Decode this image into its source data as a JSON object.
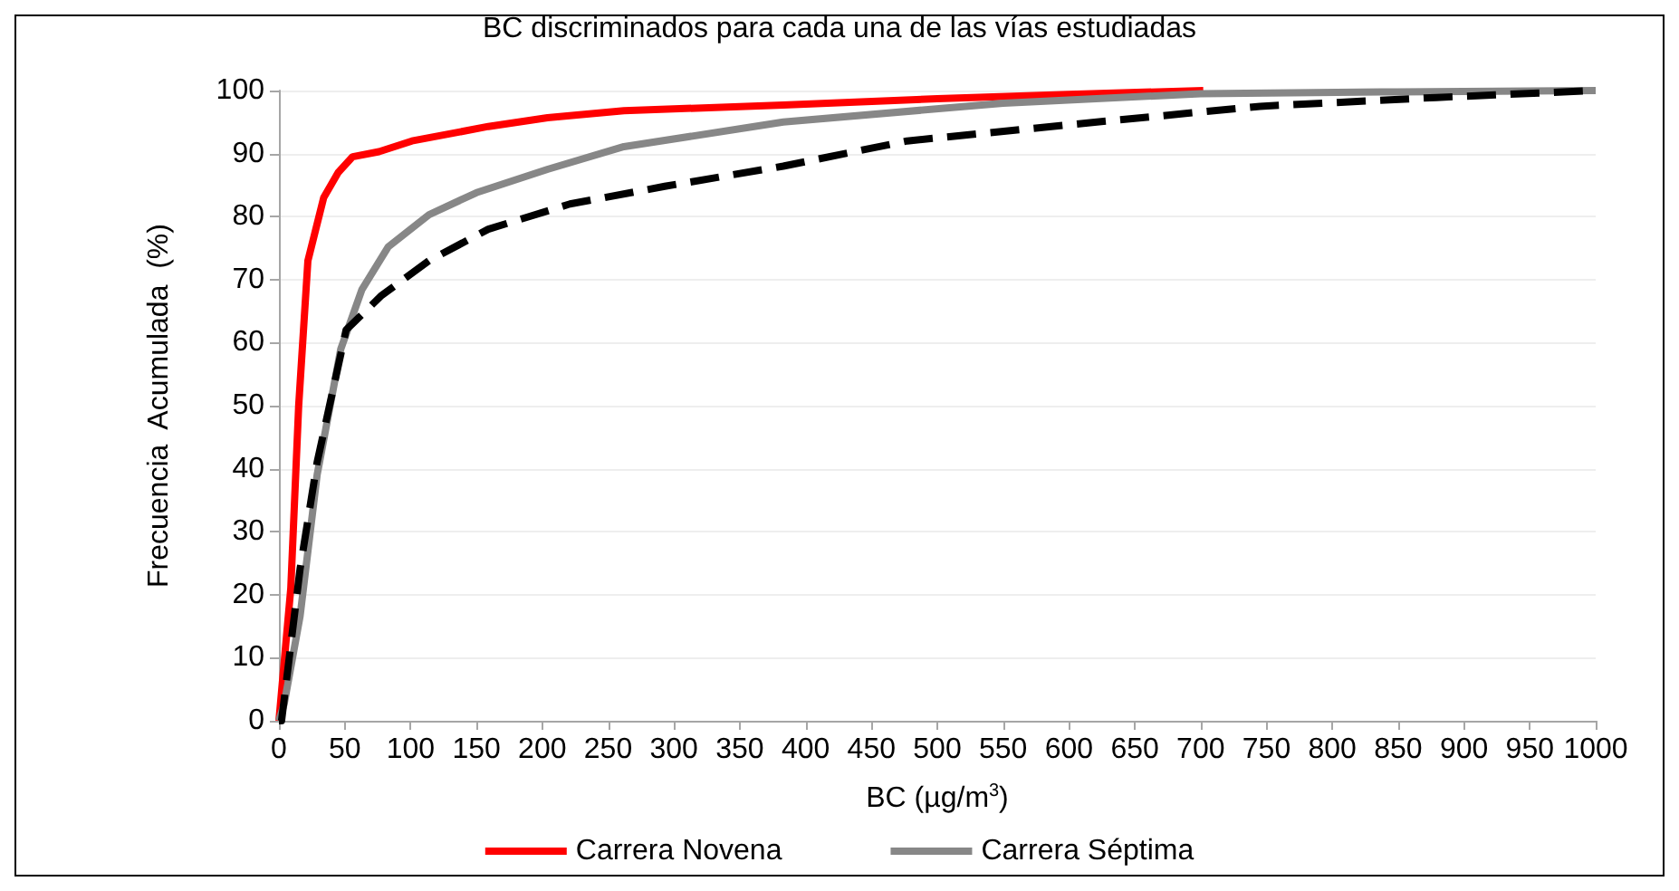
{
  "chart_data": {
    "type": "line",
    "title": "BC discriminados para cada una de las vías estudiadas",
    "xlabel": "BC (µg/m$^{3}$)",
    "ylabel": "Frecuencia  Acumulada  (%)",
    "xlim": [
      0,
      1000
    ],
    "xticks": [
      0,
      50,
      100,
      150,
      200,
      250,
      300,
      350,
      400,
      450,
      500,
      550,
      600,
      650,
      700,
      750,
      800,
      850,
      900,
      950,
      1000
    ],
    "ylim": [
      0,
      100
    ],
    "yticks": [
      0,
      10,
      20,
      30,
      40,
      50,
      60,
      70,
      80,
      90,
      100
    ],
    "grid": "y",
    "legend": "bottom",
    "marker": "none",
    "series": [
      {
        "name": "Carrera Novena",
        "color": "#ff0000",
        "line_style": "solid",
        "x": [
          0,
          9,
          15,
          22,
          34,
          45,
          56,
          76,
          101,
          159,
          204,
          262,
          383,
          500,
          600,
          702
        ],
        "values": [
          0,
          21,
          50,
          73,
          83,
          87,
          89.5,
          90.3,
          92,
          94.3,
          95.7,
          96.8,
          97.7,
          98.7,
          99.4,
          100
        ]
      },
      {
        "name": "Carrera Séptima",
        "color": "#878787",
        "line_style": "solid",
        "x": [
          0,
          4,
          16,
          29,
          47,
          63,
          83,
          114,
          150,
          204,
          262,
          383,
          550,
          700,
          850,
          1000
        ],
        "values": [
          0,
          2.7,
          16.5,
          39,
          59,
          68.4,
          75.2,
          80.3,
          83.8,
          87.5,
          91.1,
          95,
          98,
          99.5,
          99.8,
          100
        ]
      },
      {
        "color": "#000000",
        "line_style": "dashed",
        "x": [
          0,
          2,
          16,
          29,
          51,
          78,
          114,
          159,
          221,
          293,
          383,
          477,
          611,
          745,
          879,
          1000
        ],
        "values": [
          0,
          0,
          24,
          41,
          62,
          67.5,
          73,
          78,
          82,
          84.8,
          88,
          92,
          94.8,
          97.5,
          98.9,
          100
        ]
      }
    ]
  }
}
